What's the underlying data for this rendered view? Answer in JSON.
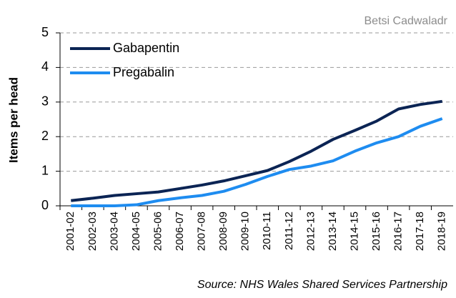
{
  "chart_data": {
    "type": "line",
    "title": "Betsi Cadwaladr",
    "ylabel": "Items per head",
    "source": "Source: NHS Wales Shared Services Partnership",
    "categories": [
      "2001-02",
      "2002-03",
      "2003-04",
      "2004-05",
      "2005-06",
      "2006-07",
      "2007-08",
      "2008-09",
      "2009-10",
      "2010-11",
      "2011-12",
      "2012-13",
      "2013-14",
      "2014-15",
      "2015-16",
      "2016-17",
      "2017-18",
      "2018-19"
    ],
    "series": [
      {
        "name": "Gabapentin",
        "color": "#0b2454",
        "values": [
          0.15,
          0.22,
          0.3,
          0.35,
          0.4,
          0.5,
          0.6,
          0.72,
          0.87,
          1.02,
          1.28,
          1.58,
          1.92,
          2.18,
          2.45,
          2.8,
          2.93,
          3.02
        ]
      },
      {
        "name": "Pregabalin",
        "color": "#1e8cf0",
        "values": [
          0,
          0,
          0,
          0.03,
          0.15,
          0.23,
          0.3,
          0.42,
          0.62,
          0.85,
          1.05,
          1.15,
          1.3,
          1.58,
          1.82,
          2.0,
          2.3,
          2.52
        ]
      }
    ],
    "ylim": [
      0,
      5
    ],
    "yticks": [
      0,
      1,
      2,
      3,
      4,
      5
    ],
    "grid": true,
    "legend": "upper left"
  }
}
